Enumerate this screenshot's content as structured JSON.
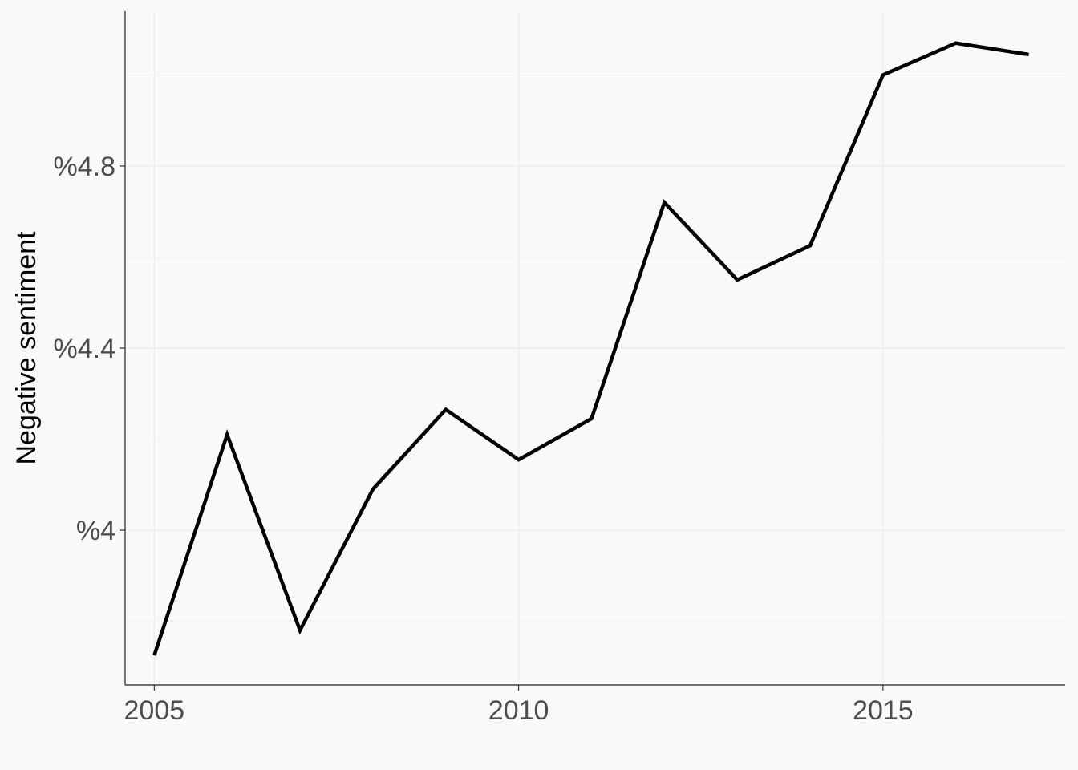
{
  "chart_data": {
    "type": "line",
    "title": "",
    "xlabel": "",
    "ylabel": "Negative sentiment",
    "x": [
      2005,
      2006,
      2007,
      2008,
      2009,
      2010,
      2011,
      2012,
      2013,
      2014,
      2015,
      2016,
      2017
    ],
    "series": [
      {
        "values": [
          3.725,
          4.21,
          3.78,
          4.09,
          4.265,
          4.155,
          4.245,
          4.72,
          4.55,
          4.625,
          5.0,
          5.07,
          5.045
        ]
      }
    ],
    "xlim": [
      2004.6,
      2017.5
    ],
    "ylim": [
      3.66,
      5.14
    ],
    "x_ticks": [
      {
        "value": 2005,
        "label": "2005"
      },
      {
        "value": 2010,
        "label": "2010"
      },
      {
        "value": 2015,
        "label": "2015"
      }
    ],
    "y_ticks": [
      {
        "value": 4.0,
        "label": "%4"
      },
      {
        "value": 4.4,
        "label": "%4.4"
      },
      {
        "value": 4.8,
        "label": "%4.8"
      }
    ],
    "y_minor_ticks": [
      3.8,
      4.2,
      4.6,
      5.0
    ],
    "grid": true,
    "legend": "none",
    "line_color": "#000000",
    "background_color": "#f9f9f9"
  }
}
